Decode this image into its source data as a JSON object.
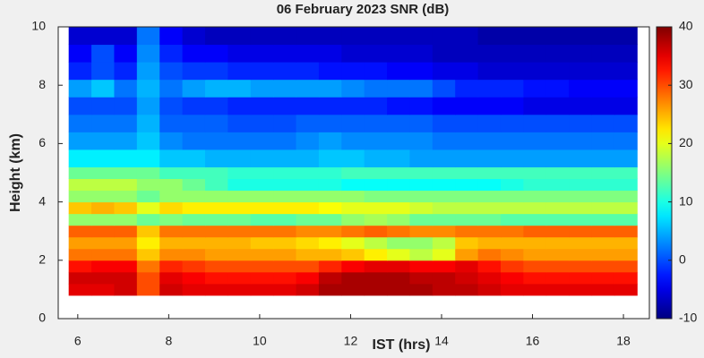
{
  "chart_data": {
    "type": "heatmap",
    "title": "06 February 2023 SNR (dB)",
    "xlabel": "IST (hrs)",
    "ylabel": "Height (km)",
    "colormap": "jet",
    "x_edges": [
      5.8,
      6.3,
      6.8,
      7.3,
      7.8,
      8.3,
      8.8,
      9.3,
      9.8,
      10.3,
      10.8,
      11.3,
      11.8,
      12.3,
      12.8,
      13.3,
      13.8,
      14.3,
      14.8,
      15.3,
      15.8,
      16.3,
      16.8,
      17.3,
      17.8,
      18.3
    ],
    "y_edges": [
      0.8,
      1.2,
      1.6,
      2.0,
      2.4,
      2.8,
      3.2,
      3.6,
      4.0,
      4.4,
      4.8,
      5.2,
      5.8,
      6.4,
      7.0,
      7.6,
      8.2,
      8.8,
      9.4,
      10.0
    ],
    "z": [
      [
        35,
        35,
        36,
        30,
        36,
        35,
        35,
        35,
        35,
        35,
        36,
        38,
        38,
        38,
        38,
        38,
        37,
        37,
        36,
        35,
        35,
        35,
        35,
        35,
        35
      ],
      [
        36,
        36,
        36,
        30,
        35,
        34,
        33,
        33,
        33,
        33,
        34,
        37,
        38,
        38,
        38,
        37,
        37,
        36,
        35,
        34,
        33,
        33,
        33,
        33,
        33
      ],
      [
        33,
        34,
        34,
        28,
        32,
        31,
        30,
        30,
        30,
        30,
        30,
        32,
        34,
        35,
        35,
        34,
        34,
        35,
        33,
        31,
        30,
        30,
        30,
        30,
        30
      ],
      [
        28,
        28,
        28,
        24,
        27,
        27,
        26,
        26,
        26,
        26,
        25,
        25,
        24,
        22,
        20,
        18,
        20,
        26,
        28,
        27,
        26,
        26,
        26,
        26,
        26
      ],
      [
        26,
        26,
        26,
        22,
        25,
        25,
        25,
        25,
        24,
        24,
        23,
        22,
        20,
        18,
        16,
        16,
        18,
        24,
        25,
        25,
        25,
        25,
        25,
        25,
        25
      ],
      [
        29,
        29,
        29,
        24,
        28,
        28,
        28,
        28,
        28,
        28,
        27,
        27,
        28,
        29,
        28,
        27,
        27,
        28,
        28,
        28,
        29,
        29,
        29,
        29,
        29
      ],
      [
        16,
        16,
        16,
        14,
        15,
        14,
        14,
        14,
        13,
        13,
        14,
        14,
        16,
        17,
        16,
        14,
        14,
        14,
        14,
        13,
        13,
        13,
        13,
        13,
        13
      ],
      [
        24,
        25,
        24,
        20,
        23,
        22,
        22,
        22,
        22,
        22,
        22,
        21,
        20,
        20,
        20,
        19,
        18,
        18,
        18,
        18,
        18,
        18,
        18,
        18,
        18
      ],
      [
        16,
        16,
        16,
        14,
        16,
        16,
        16,
        16,
        16,
        16,
        16,
        16,
        16,
        15,
        15,
        15,
        15,
        15,
        15,
        15,
        15,
        15,
        15,
        15,
        15
      ],
      [
        18,
        18,
        18,
        16,
        16,
        14,
        12,
        10,
        10,
        10,
        10,
        10,
        9,
        9,
        9,
        9,
        9,
        9,
        9,
        10,
        11,
        11,
        11,
        11,
        11
      ],
      [
        14,
        14,
        14,
        14,
        12,
        12,
        12,
        11,
        11,
        11,
        11,
        11,
        12,
        12,
        12,
        12,
        12,
        12,
        12,
        12,
        12,
        12,
        12,
        12,
        12
      ],
      [
        8,
        8,
        8,
        8,
        6,
        6,
        5,
        5,
        5,
        5,
        5,
        6,
        6,
        5,
        5,
        4,
        4,
        4,
        4,
        4,
        4,
        4,
        4,
        4,
        4
      ],
      [
        4,
        4,
        4,
        6,
        3,
        2,
        2,
        2,
        2,
        2,
        3,
        4,
        3,
        3,
        3,
        3,
        2,
        2,
        2,
        2,
        2,
        2,
        2,
        2,
        2
      ],
      [
        2,
        2,
        2,
        5,
        1,
        1,
        1,
        0,
        0,
        0,
        1,
        1,
        1,
        1,
        1,
        1,
        0,
        0,
        0,
        0,
        0,
        0,
        0,
        0,
        0
      ],
      [
        0,
        0,
        0,
        4,
        0,
        -1,
        -1,
        -2,
        -2,
        -2,
        -2,
        -2,
        -2,
        -2,
        -3,
        -3,
        -4,
        -4,
        -4,
        -4,
        -5,
        -5,
        -5,
        -5,
        -5
      ],
      [
        4,
        6,
        2,
        5,
        2,
        4,
        5,
        5,
        4,
        4,
        4,
        4,
        3,
        2,
        2,
        2,
        0,
        -2,
        -2,
        -2,
        -3,
        -3,
        -4,
        -4,
        -4
      ],
      [
        -2,
        0,
        -2,
        4,
        0,
        -1,
        -1,
        -2,
        -2,
        -2,
        -2,
        -3,
        -3,
        -3,
        -4,
        -4,
        -5,
        -5,
        -6,
        -6,
        -6,
        -6,
        -6,
        -6,
        -6
      ],
      [
        -4,
        0,
        -4,
        3,
        -2,
        -4,
        -4,
        -5,
        -5,
        -5,
        -5,
        -5,
        -6,
        -6,
        -6,
        -6,
        -7,
        -7,
        -7,
        -7,
        -7,
        -7,
        -7,
        -7,
        -7
      ],
      [
        -6,
        -6,
        -6,
        2,
        -4,
        -6,
        -7,
        -7,
        -7,
        -7,
        -7,
        -7,
        -7,
        -7,
        -7,
        -7,
        -7,
        -7,
        -8,
        -8,
        -8,
        -8,
        -8,
        -8,
        -8
      ]
    ],
    "xlim": [
      5.57,
      18.57
    ],
    "ylim": [
      0,
      10
    ],
    "xticks": [
      6,
      8,
      10,
      12,
      14,
      16,
      18
    ],
    "yticks": [
      0,
      2,
      4,
      6,
      8,
      10
    ],
    "clim": [
      -10,
      40
    ],
    "cticks": [
      -10,
      0,
      10,
      20,
      30,
      40
    ]
  }
}
